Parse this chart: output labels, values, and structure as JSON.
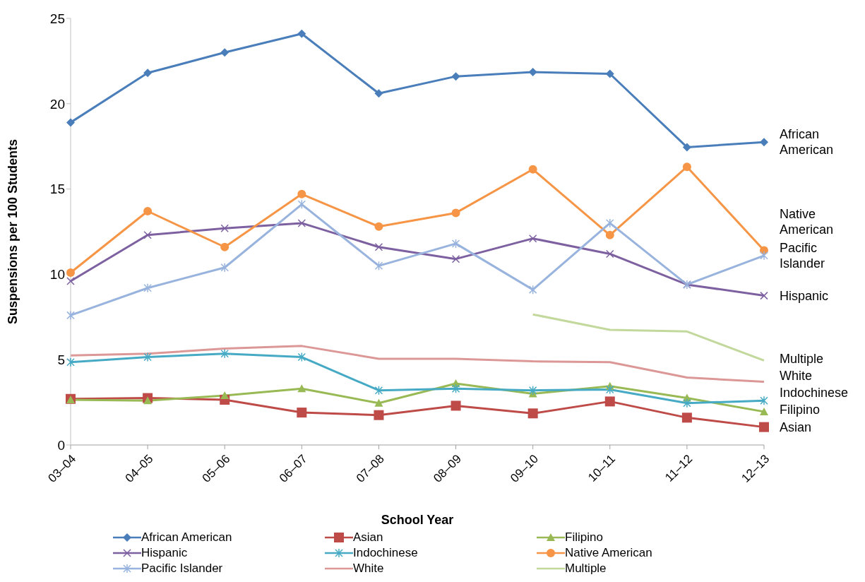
{
  "chart_data": {
    "type": "line",
    "xlabel": "School Year",
    "ylabel": "Suspensions per 100 Students",
    "categories": [
      "03–04",
      "04–05",
      "05–06",
      "06–07",
      "07–08",
      "08–09",
      "09–10",
      "10–11",
      "11–12",
      "12–13"
    ],
    "ylim": [
      0,
      25
    ],
    "yticks": [
      0,
      5,
      10,
      15,
      20,
      25
    ],
    "legend": "bottom",
    "series": [
      {
        "name": "African American",
        "color": "#4a7ebb",
        "marker": "diamond",
        "values": [
          18.9,
          21.8,
          23.0,
          24.1,
          20.6,
          21.6,
          21.85,
          21.75,
          17.45,
          17.75
        ]
      },
      {
        "name": "Asian",
        "color": "#be4b48",
        "marker": "square",
        "values": [
          2.7,
          2.75,
          2.65,
          1.9,
          1.75,
          2.3,
          1.85,
          2.55,
          1.6,
          1.05
        ]
      },
      {
        "name": "Filipino",
        "color": "#98b954",
        "marker": "triangle",
        "values": [
          2.65,
          2.6,
          2.9,
          3.3,
          2.45,
          3.6,
          3.0,
          3.45,
          2.75,
          1.95
        ]
      },
      {
        "name": "Hispanic",
        "color": "#7d60a0",
        "marker": "x",
        "values": [
          9.6,
          12.3,
          12.7,
          13.0,
          11.6,
          10.9,
          12.1,
          11.2,
          9.4,
          8.75
        ]
      },
      {
        "name": "Indochinese",
        "color": "#46aac5",
        "marker": "cross",
        "values": [
          4.85,
          5.15,
          5.35,
          5.15,
          3.2,
          3.3,
          3.2,
          3.25,
          2.45,
          2.6
        ]
      },
      {
        "name": "Native American",
        "color": "#f69545",
        "marker": "circle",
        "values": [
          10.1,
          13.7,
          11.6,
          14.7,
          12.8,
          13.6,
          16.15,
          12.3,
          16.3,
          11.4
        ]
      },
      {
        "name": "Pacific Islander",
        "color": "#98b3dd",
        "marker": "cross",
        "values": [
          7.6,
          9.2,
          10.4,
          14.1,
          10.5,
          11.8,
          9.1,
          13.0,
          9.4,
          11.1
        ]
      },
      {
        "name": "White",
        "color": "#dc9896",
        "marker": "none",
        "values": [
          5.25,
          5.35,
          5.65,
          5.8,
          5.05,
          5.05,
          4.9,
          4.85,
          3.95,
          3.7
        ]
      },
      {
        "name": "Multiple",
        "color": "#c3d89c",
        "marker": "none",
        "values": [
          null,
          null,
          null,
          null,
          null,
          null,
          7.65,
          6.75,
          6.65,
          4.95
        ]
      }
    ]
  }
}
